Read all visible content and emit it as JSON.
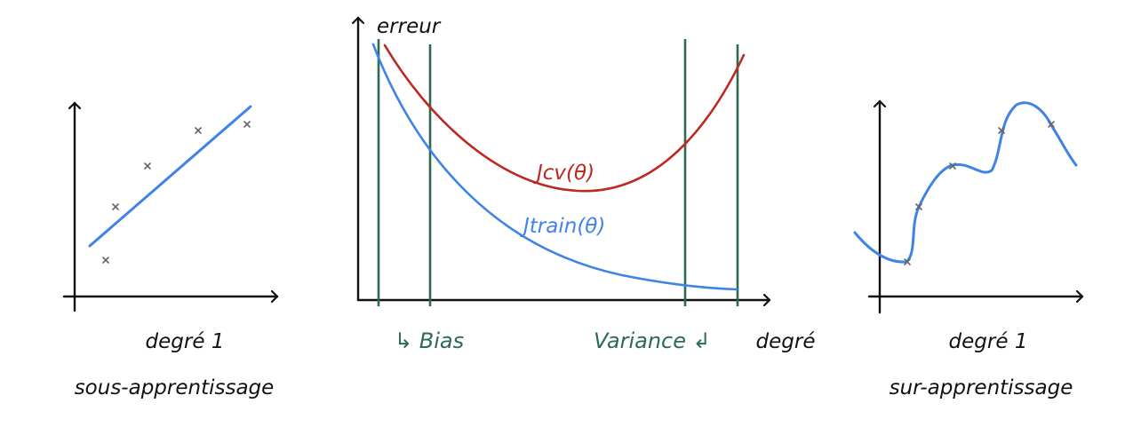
{
  "colors": {
    "blue": "#3f83e8",
    "red": "#bb2a22",
    "green": "#2d6b50",
    "ink": "#111111"
  },
  "left_panel": {
    "label_degree": "degré 1",
    "label_caption": "sous-apprentissage"
  },
  "middle_panel": {
    "y_axis_label": "erreur",
    "x_axis_label": "degré",
    "curve_cv_label": "Jcv(θ)",
    "curve_train_label": "Jtrain(θ)",
    "bias_label": "↳ Bias",
    "variance_label": "Variance ↲"
  },
  "right_panel": {
    "label_degree": "degré 1",
    "label_caption": "sur-apprentissage"
  }
}
